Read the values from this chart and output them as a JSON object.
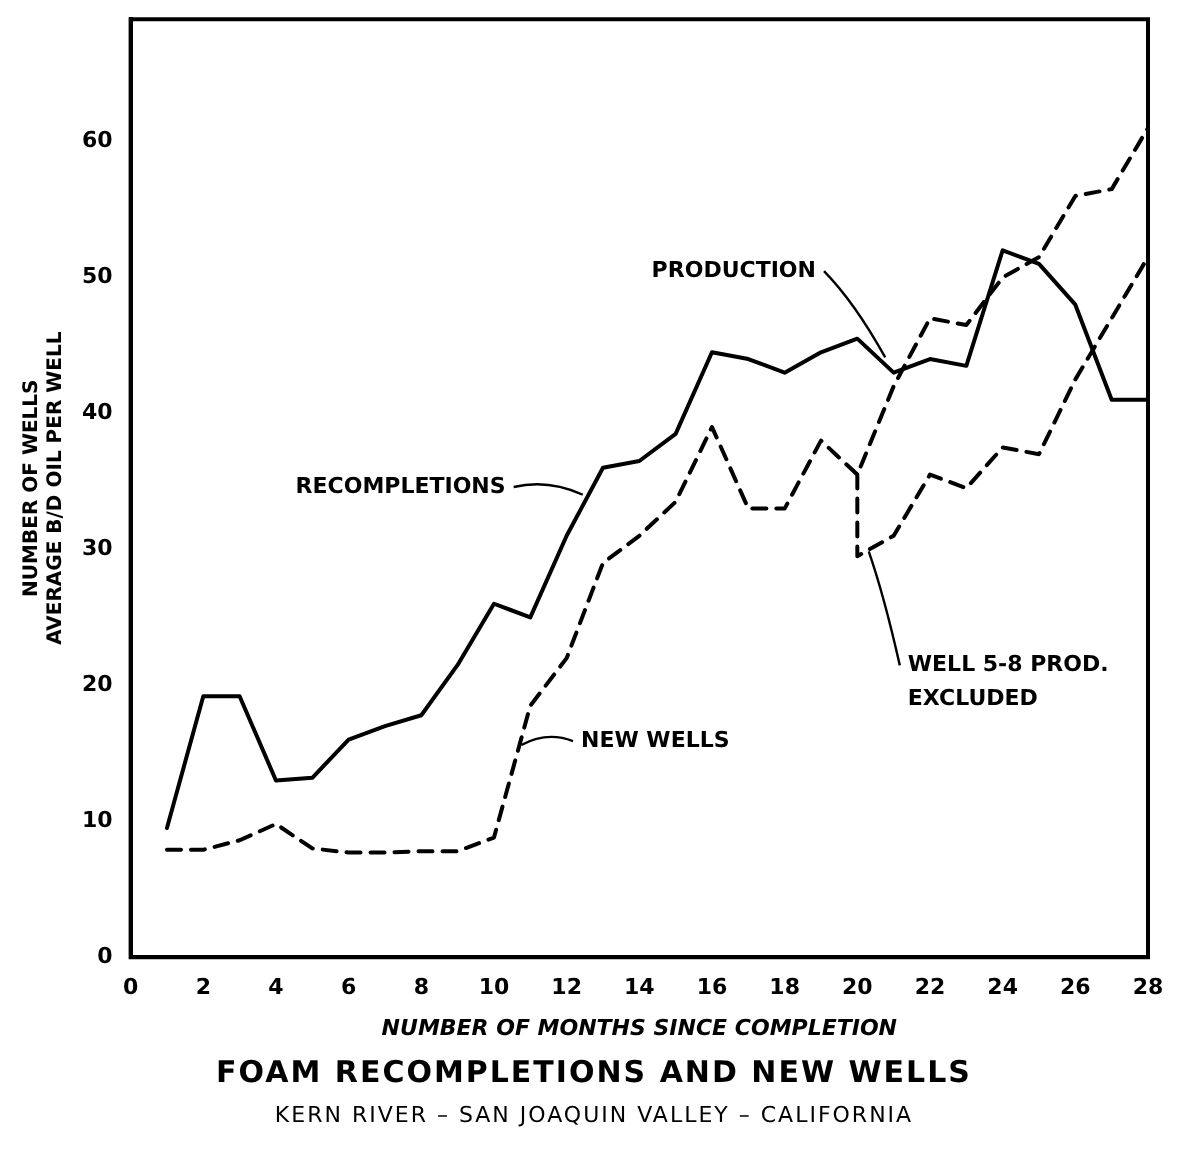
{
  "chart_data": {
    "type": "line",
    "title": "FOAM RECOMPLETIONS AND NEW WELLS",
    "subtitle": "KERN RIVER – SAN JOAQUIN VALLEY – CALIFORNIA",
    "xlabel": "NUMBER OF MONTHS SINCE COMPLETION",
    "ylabel": "NUMBER OF WELLS\nAVERAGE B/D OIL PER WELL",
    "xlim": [
      0,
      28
    ],
    "xticks": [
      0,
      2,
      4,
      6,
      8,
      10,
      12,
      14,
      16,
      18,
      20,
      22,
      24,
      26,
      28
    ],
    "ylim": [
      0,
      69
    ],
    "yticks": [
      0,
      10,
      20,
      30,
      40,
      50,
      60
    ],
    "grid": false,
    "legend": false,
    "marker": "none",
    "series": [
      {
        "color": "#000000",
        "line_style": "solid",
        "x": [
          1,
          2,
          3,
          4,
          5,
          6,
          7,
          8,
          9,
          10,
          11,
          12,
          13,
          14,
          15,
          16,
          17,
          18,
          19,
          20,
          21,
          22,
          23,
          24,
          25,
          26,
          27,
          28
        ],
        "values": [
          9.5,
          19.2,
          19.2,
          13,
          13.2,
          16,
          17,
          17.8,
          21.5,
          26,
          25,
          31,
          36,
          36.5,
          38.5,
          44.5,
          44,
          43,
          44.5,
          45.5,
          43,
          44,
          43.5,
          52,
          51,
          48,
          41,
          41
        ]
      },
      {
        "color": "#000000",
        "line_style": "dashed",
        "x": [
          1,
          2,
          3,
          4,
          5,
          6,
          7,
          8,
          9,
          10,
          11,
          12,
          13,
          14,
          15,
          16,
          17,
          18,
          19,
          20,
          21,
          22,
          23,
          24,
          25,
          26,
          27,
          28
        ],
        "values": [
          7.9,
          7.9,
          8.6,
          9.8,
          8,
          7.7,
          7.7,
          7.8,
          7.8,
          8.8,
          18.5,
          22,
          29,
          31,
          33.5,
          39,
          33,
          33,
          38,
          35.5,
          42,
          47,
          46.5,
          50,
          51.5,
          56,
          56.5,
          61
        ]
      },
      {
        "color": "#000000",
        "line_style": "dashed",
        "x": [
          20,
          20,
          21,
          22,
          23,
          24,
          25,
          26,
          27,
          28
        ],
        "values": [
          35.5,
          29.5,
          31,
          35.5,
          34.5,
          37.5,
          37,
          42.5,
          47,
          51.5
        ]
      }
    ],
    "annotations": [
      {
        "text": "RECOMPLETIONS",
        "x": 12.5,
        "y": 34
      },
      {
        "text": "NEW WELLS",
        "x": 10.7,
        "y": 15.6
      },
      {
        "text": "PRODUCTION",
        "x": 20.8,
        "y": 44
      },
      {
        "text": "WELL 5-8 PROD.\nEXCLUDED",
        "x": 20.3,
        "y": 30
      }
    ]
  }
}
